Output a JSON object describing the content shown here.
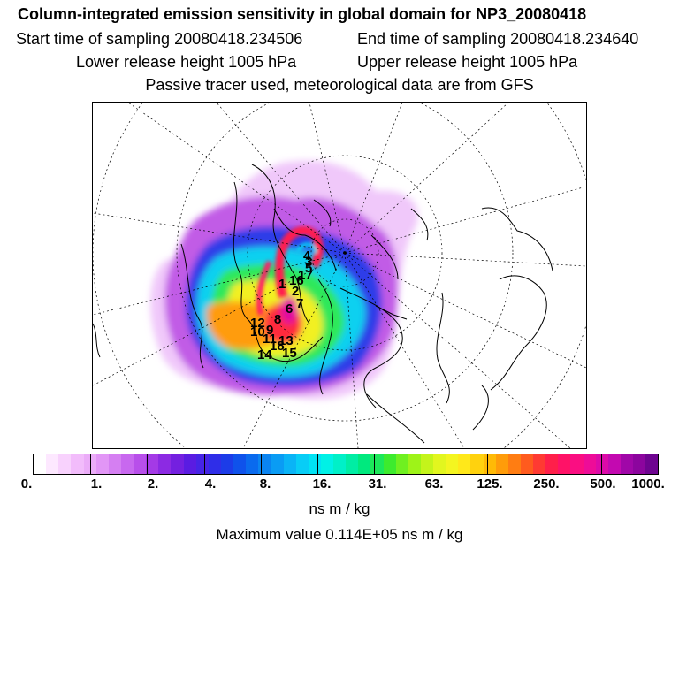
{
  "header": {
    "title": "Column-integrated emission sensitivity in global domain for NP3_20080418",
    "start_label": "Start time of sampling 20080418.234506",
    "end_label": "End time of sampling 20080418.234640",
    "lower_label": "Lower release height 1005 hPa",
    "upper_label": "Upper release height 1005 hPa",
    "tracer_note": "Passive tracer used, meteorological data are from GFS"
  },
  "map": {
    "station_marks": [
      "1",
      "2",
      "3",
      "4",
      "5",
      "6",
      "7",
      "8",
      "9",
      "10",
      "11",
      "12",
      "13",
      "14",
      "15",
      "16",
      "17",
      "18"
    ]
  },
  "colorbar": {
    "tick_labels": [
      "0.",
      "1.",
      "2.",
      "4.",
      "8.",
      "16.",
      "31.",
      "63.",
      "125.",
      "250.",
      "500.",
      "1000."
    ],
    "colors": [
      "#ffffff",
      "#fde8ff",
      "#f8d2fd",
      "#f2bcfb",
      "#ebacf8",
      "#e296f6",
      "#d57ff2",
      "#c868ef",
      "#b84fea",
      "#a43ae6",
      "#8c2ae3",
      "#7420e0",
      "#5a1ce2",
      "#4624e6",
      "#2f2ee8",
      "#1c3ce8",
      "#0f52eb",
      "#0a6aee",
      "#0a84f1",
      "#0a9cf4",
      "#0ab4f6",
      "#08cdf6",
      "#00e3f4",
      "#00f1e6",
      "#00f0c8",
      "#00eda4",
      "#00e97e",
      "#1ce85a",
      "#3deb2e",
      "#6ff020",
      "#9ef318",
      "#c4f41b",
      "#e2f61f",
      "#f4f520",
      "#ffe81a",
      "#ffd20e",
      "#ffba06",
      "#ff9c0a",
      "#ff7d12",
      "#ff5b1e",
      "#ff3a32",
      "#ff1f4a",
      "#ff1267",
      "#fa0e82",
      "#ee0c98",
      "#dc0aa8",
      "#c309b0",
      "#a007a8",
      "#8c059e",
      "#6e0490"
    ],
    "units": "ns m / kg"
  },
  "footer": {
    "max_value": "Maximum value  0.114E+05 ns m / kg"
  }
}
